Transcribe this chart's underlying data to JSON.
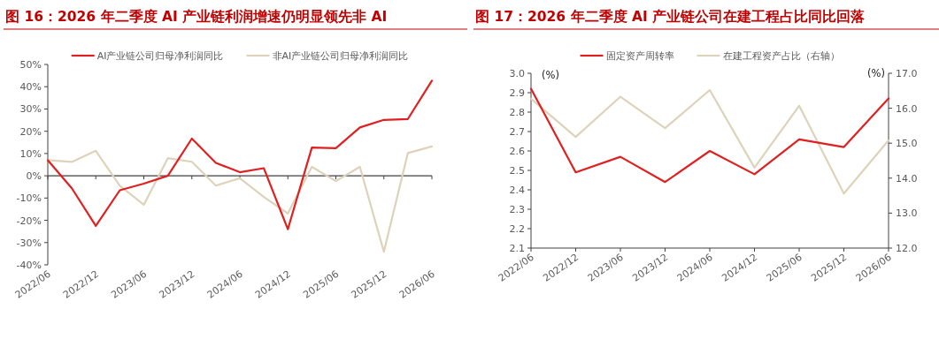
{
  "chart_data": [
    {
      "type": "line",
      "title": "图 16：2026 年二季度 AI 产业链利润增速仍明显领先非 AI",
      "categories": [
        "2022/06",
        null,
        "2022/12",
        null,
        "2023/06",
        null,
        "2023/12",
        null,
        "2024/06",
        null,
        "2024/12",
        null,
        "2025/06",
        null,
        "2025/12",
        null,
        "2026/06"
      ],
      "series": [
        {
          "name": "AI产业链公司归母净利润同比",
          "color": "#e02020",
          "values": [
            7,
            -5.6,
            -22.5,
            -6.5,
            -3.5,
            0,
            16.7,
            5.8,
            1.6,
            3.4,
            -24,
            12.7,
            12.4,
            21.7,
            25.1,
            25.5,
            42.7
          ]
        },
        {
          "name": "非AI产业链公司归母净利润同比",
          "color": "#ddd3bb",
          "values": [
            7,
            6.2,
            11.2,
            -4.5,
            -13,
            7.9,
            6.3,
            -4.4,
            -1.1,
            -9.5,
            -16.9,
            4,
            -2.4,
            4,
            -34.1,
            10.2,
            13.2
          ]
        }
      ],
      "ylim": [
        -40,
        50
      ],
      "yticks": [
        {
          "value": -40,
          "label": "-40%"
        },
        {
          "value": -30,
          "label": "-30%"
        },
        {
          "value": -20,
          "label": "-20%"
        },
        {
          "value": -10,
          "label": "-10%"
        },
        {
          "value": 0,
          "label": "0%"
        },
        {
          "value": 10,
          "label": "10%"
        },
        {
          "value": 20,
          "label": "20%"
        },
        {
          "value": 30,
          "label": "30%"
        },
        {
          "value": 40,
          "label": "40%"
        },
        {
          "value": 50,
          "label": "50%"
        }
      ],
      "ref_lines": [
        {
          "axis": "y",
          "value": 0,
          "color": "#404040"
        }
      ],
      "grid": false,
      "legend": "top"
    },
    {
      "type": "line",
      "title": "图 17：2026 年二季度 AI 产业链公司在建工程占比同比回落",
      "categories": [
        "2022/06",
        "2022/12",
        "2023/06",
        "2023/12",
        "2024/06",
        "2024/12",
        "2025/06",
        "2025/12",
        "2026/06"
      ],
      "series": [
        {
          "name": "固定资产周转率",
          "color": "#e02020",
          "values": [
            2.92,
            2.49,
            2.57,
            2.44,
            2.6,
            2.48,
            2.66,
            2.62,
            2.87
          ]
        },
        {
          "name": "在建工程资产占比（右轴）",
          "color": "#ddd3bb",
          "axis": "y2",
          "values": [
            16.27,
            15.18,
            16.33,
            15.43,
            16.52,
            14.3,
            16.07,
            13.56,
            15.08
          ]
        }
      ],
      "ylabel": "(%)",
      "y2label": "(%)",
      "ylim": [
        2.1,
        3.0
      ],
      "yticks": [
        {
          "value": 2.1,
          "label": "2.1"
        },
        {
          "value": 2.2,
          "label": "2.2"
        },
        {
          "value": 2.3,
          "label": "2.3"
        },
        {
          "value": 2.4,
          "label": "2.4"
        },
        {
          "value": 2.5,
          "label": "2.5"
        },
        {
          "value": 2.6,
          "label": "2.6"
        },
        {
          "value": 2.7,
          "label": "2.7"
        },
        {
          "value": 2.8,
          "label": "2.8"
        },
        {
          "value": 2.9,
          "label": "2.9"
        },
        {
          "value": 3.0,
          "label": "3.0"
        }
      ],
      "y2lim": [
        12,
        17
      ],
      "y2ticks": [
        {
          "value": 12,
          "label": "12.0"
        },
        {
          "value": 13,
          "label": "13.0"
        },
        {
          "value": 14,
          "label": "14.0"
        },
        {
          "value": 15,
          "label": "15.0"
        },
        {
          "value": 16,
          "label": "16.0"
        },
        {
          "value": 17,
          "label": "17.0"
        }
      ],
      "grid": false,
      "legend": "top"
    }
  ]
}
